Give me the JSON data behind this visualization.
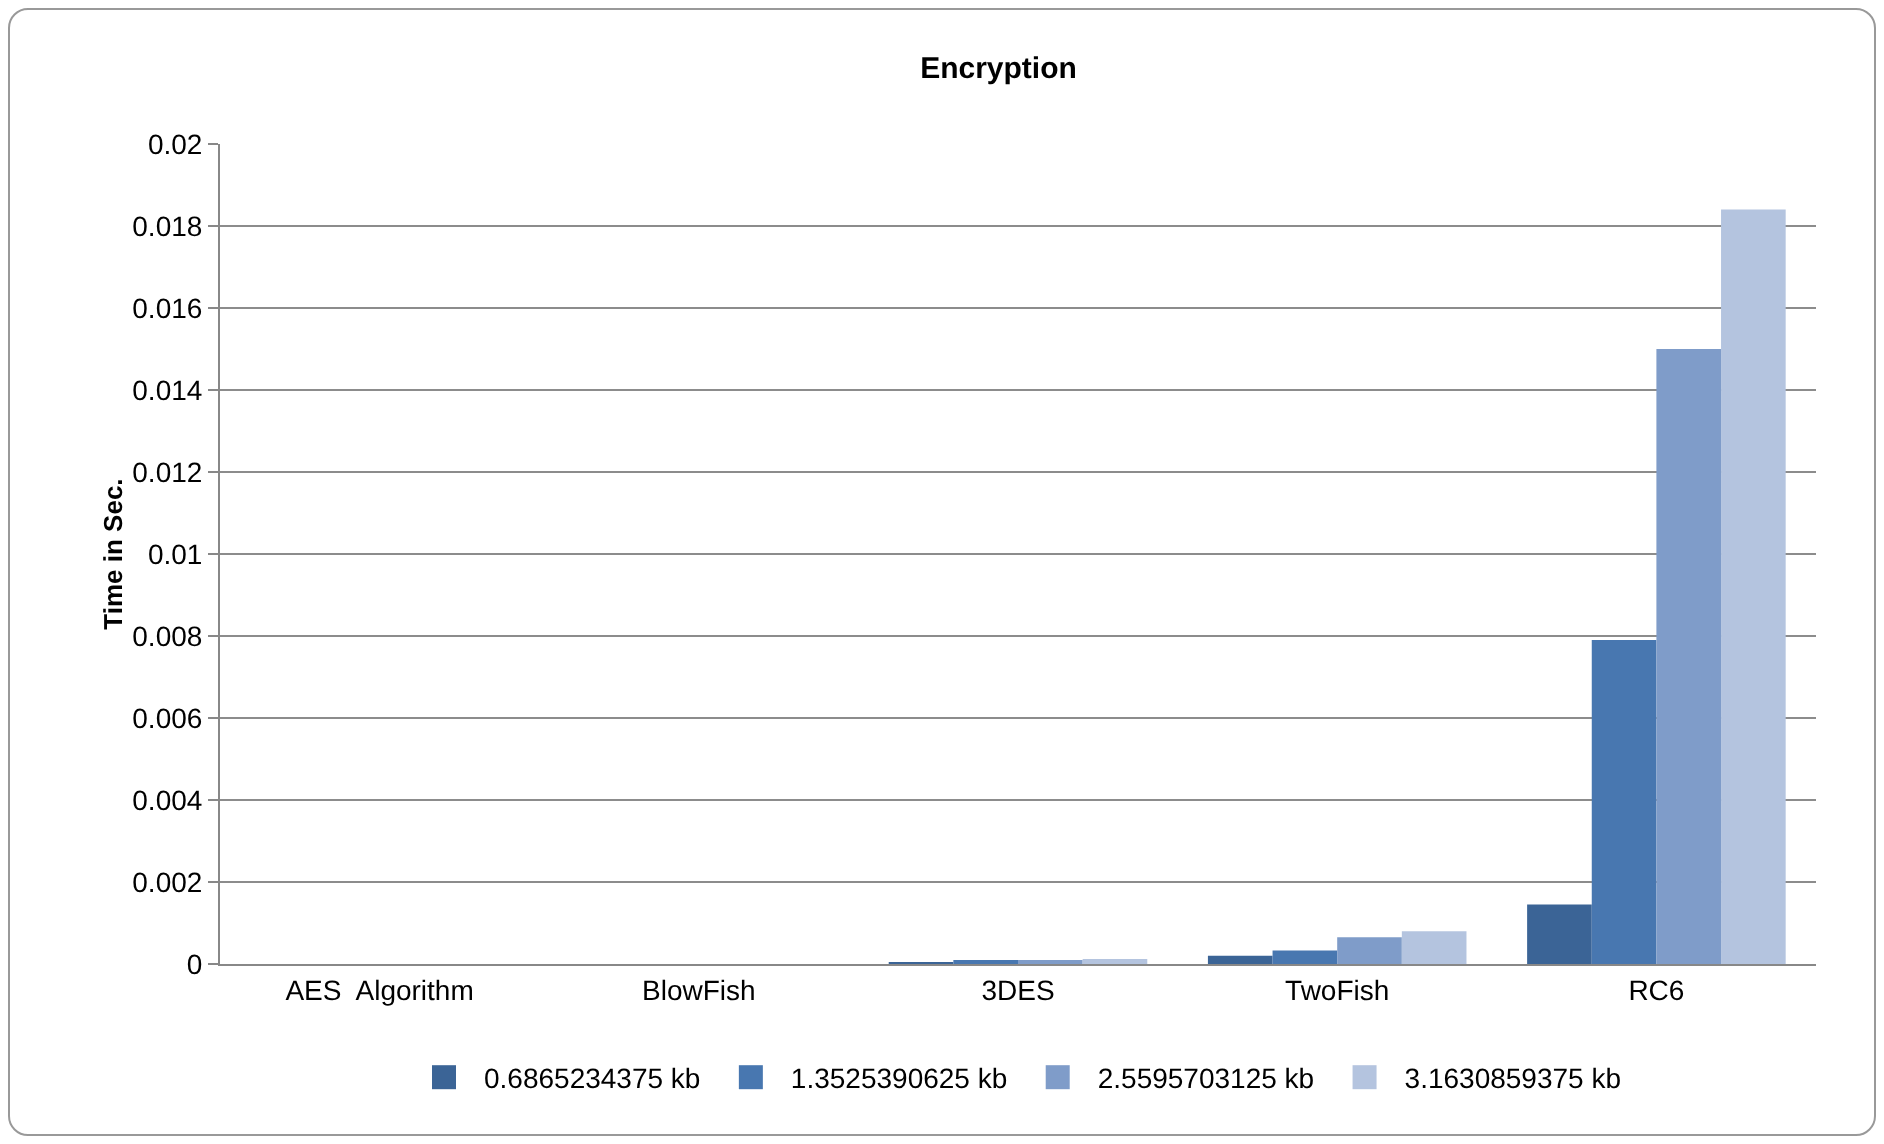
{
  "chart_data": {
    "type": "bar",
    "title": "Encryption",
    "ylabel": "Time in Sec.",
    "categories": [
      "AES  Algorithm",
      "BlowFish",
      "3DES",
      "TwoFish",
      "RC6"
    ],
    "series": [
      {
        "name": "0.6865234375 kb",
        "color": "#3b6496",
        "values": [
          0,
          0,
          3e-05,
          0.0002,
          0.00145
        ]
      },
      {
        "name": "1.3525390625 kb",
        "color": "#4877b0",
        "values": [
          0,
          0,
          7e-05,
          0.00033,
          0.0079
        ]
      },
      {
        "name": "2.5595703125 kb",
        "color": "#7f9cc9",
        "values": [
          0,
          0,
          0.0001,
          0.00065,
          0.015
        ]
      },
      {
        "name": "3.1630859375 kb",
        "color": "#b4c4df",
        "values": [
          0,
          0,
          0.00012,
          0.0008,
          0.0184
        ]
      }
    ],
    "ylim": [
      0,
      0.02
    ],
    "yticks": [
      0,
      0.002,
      0.004,
      0.006,
      0.008,
      0.01,
      0.012,
      0.014,
      0.016,
      0.018,
      0.02
    ],
    "grid": "y",
    "legend": "bottom"
  }
}
